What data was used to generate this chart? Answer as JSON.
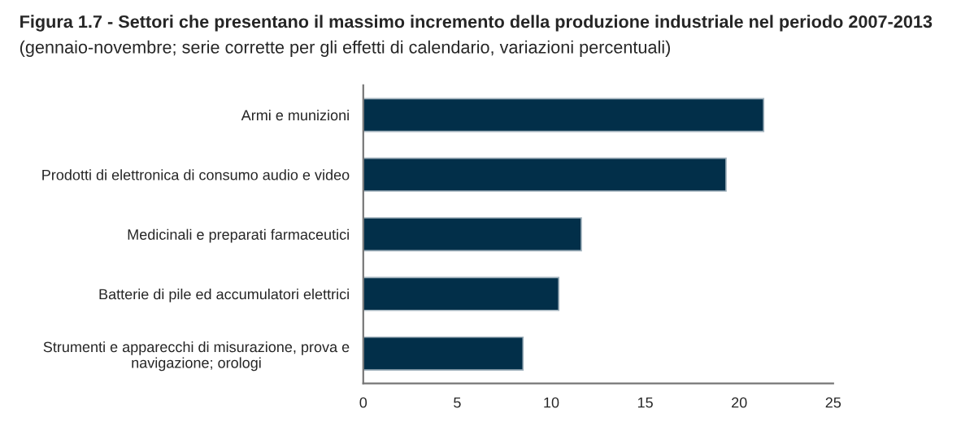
{
  "chart_data": {
    "type": "bar",
    "orientation": "horizontal",
    "title": "Figura 1.7 - Settori che presentano il massimo incremento della produzione industriale nel periodo 2007-2013",
    "subtitle": "(gennaio-novembre; serie corrette per gli effetti di calendario, variazioni percentuali)",
    "categories": [
      "Armi e munizioni",
      "Prodotti di elettronica di consumo audio e video",
      "Medicinali e preparati farmaceutici",
      "Batterie di pile ed accumulatori elettrici",
      "Strumenti e apparecchi di misurazione, prova e\nnavigazione; orologi"
    ],
    "values": [
      21.3,
      19.3,
      11.6,
      10.4,
      8.5
    ],
    "color": "#022f49",
    "xlim": [
      0,
      25
    ],
    "xticks": [
      0,
      5,
      10,
      15,
      20,
      25
    ],
    "grid": false,
    "legend": false
  }
}
